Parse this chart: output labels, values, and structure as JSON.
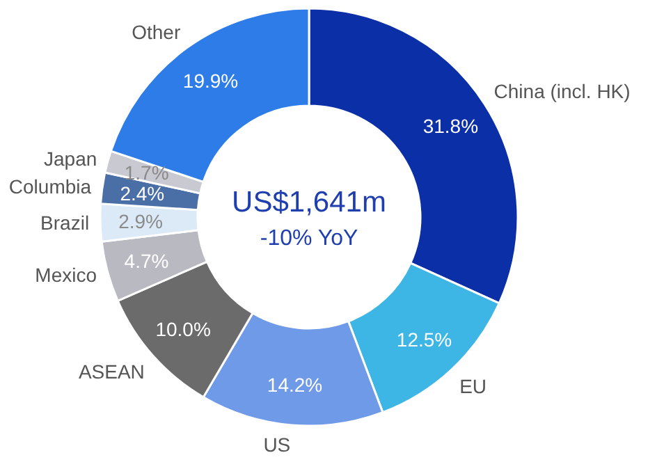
{
  "chart_data": {
    "type": "donut",
    "categories": [
      "China (incl. HK)",
      "EU",
      "US",
      "ASEAN",
      "Mexico",
      "Brazil",
      "Columbia",
      "Japan",
      "Other"
    ],
    "values": [
      31.8,
      12.5,
      14.2,
      10.0,
      4.7,
      2.9,
      2.4,
      1.7,
      19.9
    ],
    "value_labels": [
      "31.8%",
      "12.5%",
      "14.2%",
      "10.0%",
      "4.7%",
      "2.9%",
      "2.4%",
      "1.7%",
      "19.9%"
    ],
    "colors": [
      "#0b2fa6",
      "#3db6e6",
      "#6f9ae8",
      "#6b6b6b",
      "#b9b9c1",
      "#dce9f6",
      "#4a6ea6",
      "#c9c9d1",
      "#2d7ce8"
    ],
    "annotations": [
      "US$1,641m",
      "-10% YoY"
    ]
  }
}
